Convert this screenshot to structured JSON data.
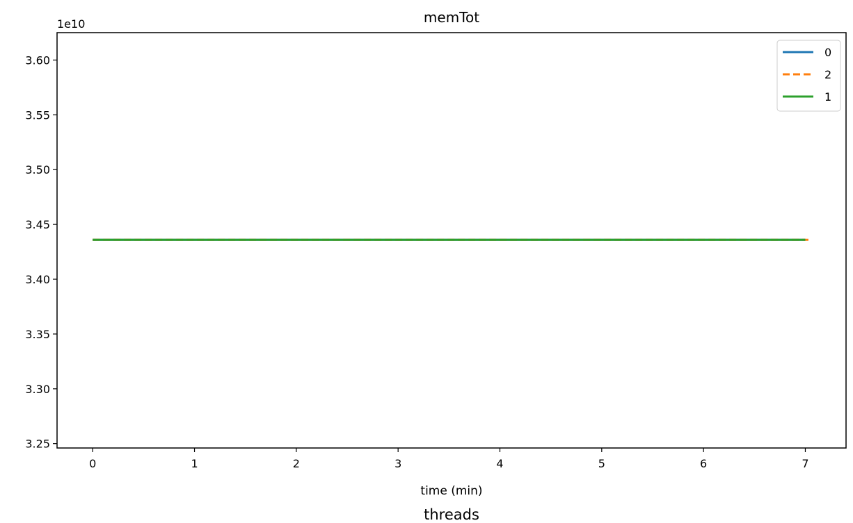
{
  "chart_data": {
    "type": "line",
    "title": "memTot",
    "xlabel": "time (min)",
    "ylabel": "",
    "footer": "threads",
    "y_offset_text": "1e10",
    "xlim": [
      -0.35,
      7.4
    ],
    "ylim": [
      3.246,
      3.625
    ],
    "x_ticks": [
      0,
      1,
      2,
      3,
      4,
      5,
      6,
      7
    ],
    "x_tick_labels": [
      "0",
      "1",
      "2",
      "3",
      "4",
      "5",
      "6",
      "7"
    ],
    "y_ticks": [
      3.25,
      3.3,
      3.35,
      3.4,
      3.45,
      3.5,
      3.55,
      3.6
    ],
    "y_tick_labels": [
      "3.25",
      "3.30",
      "3.35",
      "3.40",
      "3.45",
      "3.50",
      "3.55",
      "3.60"
    ],
    "grid": false,
    "legend_position": "top-right",
    "series": [
      {
        "name": "0",
        "color": "#1f77b4",
        "dash": "solid",
        "x": [
          0,
          7
        ],
        "y": [
          3.436,
          3.436
        ]
      },
      {
        "name": "2",
        "color": "#ff7f0e",
        "dash": "dashed",
        "x": [
          0,
          7.03
        ],
        "y": [
          3.436,
          3.436
        ]
      },
      {
        "name": "1",
        "color": "#2ca02c",
        "dash": "solid",
        "x": [
          0,
          7
        ],
        "y": [
          3.436,
          3.436
        ]
      }
    ]
  }
}
